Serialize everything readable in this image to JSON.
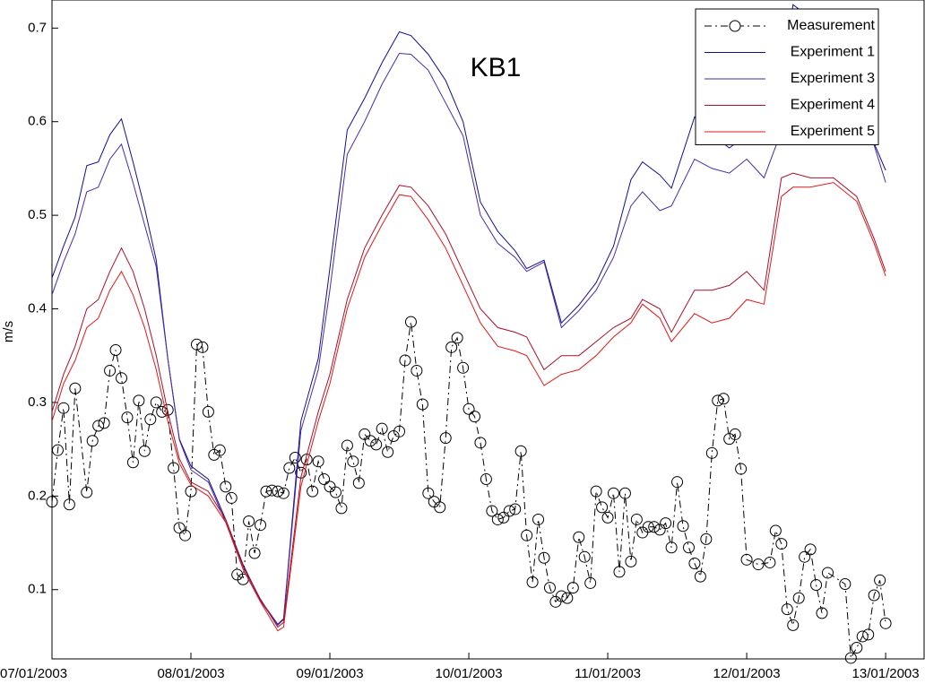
{
  "chart_data": {
    "type": "line",
    "title": "KB1",
    "ylabel": "m/s",
    "legend": "upper right",
    "x": [
      0,
      2,
      4,
      6,
      8,
      10,
      12,
      14,
      16,
      18,
      20,
      22,
      24,
      27,
      30,
      33,
      36,
      39,
      40,
      43,
      46,
      48,
      51,
      54,
      57,
      60,
      62,
      65,
      68,
      71,
      74,
      77,
      80,
      82,
      85,
      88,
      91,
      94,
      97,
      100,
      102,
      105,
      107,
      111,
      114,
      117,
      120,
      123,
      126,
      128,
      131,
      135,
      139,
      142,
      144
    ],
    "xlim": [
      0,
      150.8
    ],
    "xticks": [
      {
        "value": 0,
        "label": "07/01/2003"
      },
      {
        "value": 24,
        "label": "08/01/2003"
      },
      {
        "value": 48,
        "label": "09/01/2003"
      },
      {
        "value": 72,
        "label": "10/01/2003"
      },
      {
        "value": 96,
        "label": "11/01/2003"
      },
      {
        "value": 120,
        "label": "12/01/2003"
      },
      {
        "value": 144,
        "label": "13/01/2003"
      }
    ],
    "ylim": [
      0.026,
      0.73
    ],
    "yticks": [
      0.1,
      0.2,
      0.3,
      0.4,
      0.5,
      0.6,
      0.7
    ],
    "series": [
      {
        "name": "Measurement",
        "color": "#000000",
        "marker": "circle",
        "linestyle": "dashdot",
        "x": [
          0,
          1,
          2,
          3,
          4,
          6,
          7,
          8,
          9,
          10,
          11,
          12,
          13,
          14,
          15,
          16,
          17,
          18,
          19,
          20,
          21,
          22,
          23,
          24,
          25,
          26,
          27,
          28,
          29,
          30,
          31,
          32,
          33,
          34,
          35,
          36,
          37,
          38,
          39,
          40,
          41,
          42,
          43,
          44,
          45,
          46,
          47,
          48,
          49,
          50,
          51,
          52,
          53,
          54,
          55,
          56,
          57,
          58,
          59,
          60,
          61,
          62,
          63,
          64,
          65,
          66,
          67,
          68,
          69,
          70,
          71,
          72,
          73,
          74,
          75,
          76,
          77,
          78,
          79,
          80,
          81,
          82,
          83,
          84,
          85,
          86,
          87,
          88,
          89,
          90,
          91,
          92,
          93,
          94,
          95,
          96,
          97,
          98,
          99,
          100,
          101,
          102,
          103,
          104,
          105,
          106,
          107,
          108,
          109,
          110,
          111,
          112,
          113,
          114,
          115,
          116,
          117,
          118,
          119,
          120,
          122,
          124,
          125,
          126,
          127,
          128,
          129,
          130,
          131,
          132,
          133,
          134,
          137,
          138,
          139,
          140,
          141,
          142,
          143,
          144
        ],
        "values": [
          0.194,
          0.249,
          0.294,
          0.191,
          0.315,
          0.204,
          0.259,
          0.275,
          0.278,
          0.334,
          0.356,
          0.326,
          0.284,
          0.236,
          0.302,
          0.248,
          0.282,
          0.3,
          0.29,
          0.292,
          0.23,
          0.166,
          0.158,
          0.205,
          0.362,
          0.359,
          0.29,
          0.244,
          0.249,
          0.21,
          0.198,
          0.116,
          0.111,
          0.173,
          0.139,
          0.169,
          0.205,
          0.206,
          0.205,
          0.203,
          0.23,
          0.241,
          0.225,
          0.239,
          0.205,
          0.237,
          0.218,
          0.21,
          0.204,
          0.187,
          0.254,
          0.237,
          0.214,
          0.266,
          0.259,
          0.255,
          0.272,
          0.247,
          0.264,
          0.269,
          0.345,
          0.386,
          0.334,
          0.298,
          0.203,
          0.194,
          0.188,
          0.262,
          0.359,
          0.369,
          0.337,
          0.293,
          0.285,
          0.257,
          0.218,
          0.184,
          0.175,
          0.177,
          0.184,
          0.186,
          0.248,
          0.158,
          0.108,
          0.175,
          0.134,
          0.102,
          0.087,
          0.093,
          0.091,
          0.102,
          0.156,
          0.135,
          0.107,
          0.205,
          0.188,
          0.177,
          0.203,
          0.119,
          0.203,
          0.13,
          0.175,
          0.161,
          0.167,
          0.167,
          0.164,
          0.171,
          0.145,
          0.215,
          0.168,
          0.145,
          0.128,
          0.114,
          0.154,
          0.246,
          0.302,
          0.304,
          0.261,
          0.266,
          0.229,
          0.132,
          0.127,
          0.129,
          0.163,
          0.149,
          0.079,
          0.062,
          0.091,
          0.135,
          0.143,
          0.105,
          0.075,
          0.118,
          0.106,
          0.027,
          0.038,
          0.05,
          0.052,
          0.094,
          0.11,
          0.064
        ]
      },
      {
        "name": "Experiment 1",
        "color": "#10108f",
        "values": [
          0.433,
          0.467,
          0.498,
          0.553,
          0.557,
          0.586,
          0.603,
          0.557,
          0.508,
          0.452,
          0.347,
          0.261,
          0.232,
          0.218,
          0.175,
          0.127,
          0.089,
          0.063,
          0.069,
          0.28,
          0.347,
          0.443,
          0.591,
          0.625,
          0.663,
          0.696,
          0.692,
          0.672,
          0.644,
          0.6,
          0.514,
          0.483,
          0.462,
          0.443,
          0.452,
          0.385,
          0.404,
          0.428,
          0.467,
          0.538,
          0.557,
          0.543,
          0.529,
          0.605,
          0.586,
          0.572,
          0.586,
          0.577,
          0.634,
          0.725,
          0.711,
          0.682,
          0.644,
          0.577,
          0.548
        ]
      },
      {
        "name": "Experiment 3",
        "color": "#4a2aa8",
        "values": [
          0.415,
          0.45,
          0.48,
          0.525,
          0.53,
          0.56,
          0.576,
          0.535,
          0.49,
          0.445,
          0.347,
          0.26,
          0.228,
          0.215,
          0.172,
          0.125,
          0.088,
          0.062,
          0.068,
          0.27,
          0.335,
          0.42,
          0.565,
          0.6,
          0.64,
          0.673,
          0.672,
          0.655,
          0.62,
          0.585,
          0.5,
          0.47,
          0.455,
          0.44,
          0.45,
          0.38,
          0.398,
          0.42,
          0.455,
          0.51,
          0.525,
          0.505,
          0.51,
          0.56,
          0.55,
          0.545,
          0.56,
          0.54,
          0.59,
          0.67,
          0.665,
          0.66,
          0.63,
          0.575,
          0.535
        ]
      },
      {
        "name": "Experiment 4",
        "color": "#a8102a",
        "values": [
          0.29,
          0.33,
          0.36,
          0.4,
          0.41,
          0.44,
          0.465,
          0.44,
          0.4,
          0.35,
          0.29,
          0.24,
          0.215,
          0.205,
          0.175,
          0.125,
          0.09,
          0.06,
          0.065,
          0.22,
          0.29,
          0.33,
          0.41,
          0.465,
          0.5,
          0.532,
          0.53,
          0.51,
          0.48,
          0.44,
          0.4,
          0.38,
          0.375,
          0.37,
          0.335,
          0.35,
          0.35,
          0.365,
          0.38,
          0.39,
          0.41,
          0.4,
          0.375,
          0.42,
          0.42,
          0.425,
          0.44,
          0.42,
          0.54,
          0.545,
          0.54,
          0.54,
          0.52,
          0.475,
          0.44
        ]
      },
      {
        "name": "Experiment 5",
        "color": "#e01818",
        "values": [
          0.28,
          0.32,
          0.345,
          0.38,
          0.39,
          0.42,
          0.44,
          0.415,
          0.38,
          0.335,
          0.28,
          0.235,
          0.212,
          0.2,
          0.172,
          0.122,
          0.087,
          0.056,
          0.06,
          0.21,
          0.28,
          0.32,
          0.4,
          0.455,
          0.49,
          0.522,
          0.52,
          0.495,
          0.465,
          0.425,
          0.385,
          0.36,
          0.355,
          0.35,
          0.318,
          0.33,
          0.335,
          0.35,
          0.37,
          0.385,
          0.405,
          0.39,
          0.365,
          0.395,
          0.385,
          0.39,
          0.41,
          0.405,
          0.52,
          0.53,
          0.53,
          0.535,
          0.515,
          0.47,
          0.435
        ]
      }
    ]
  }
}
